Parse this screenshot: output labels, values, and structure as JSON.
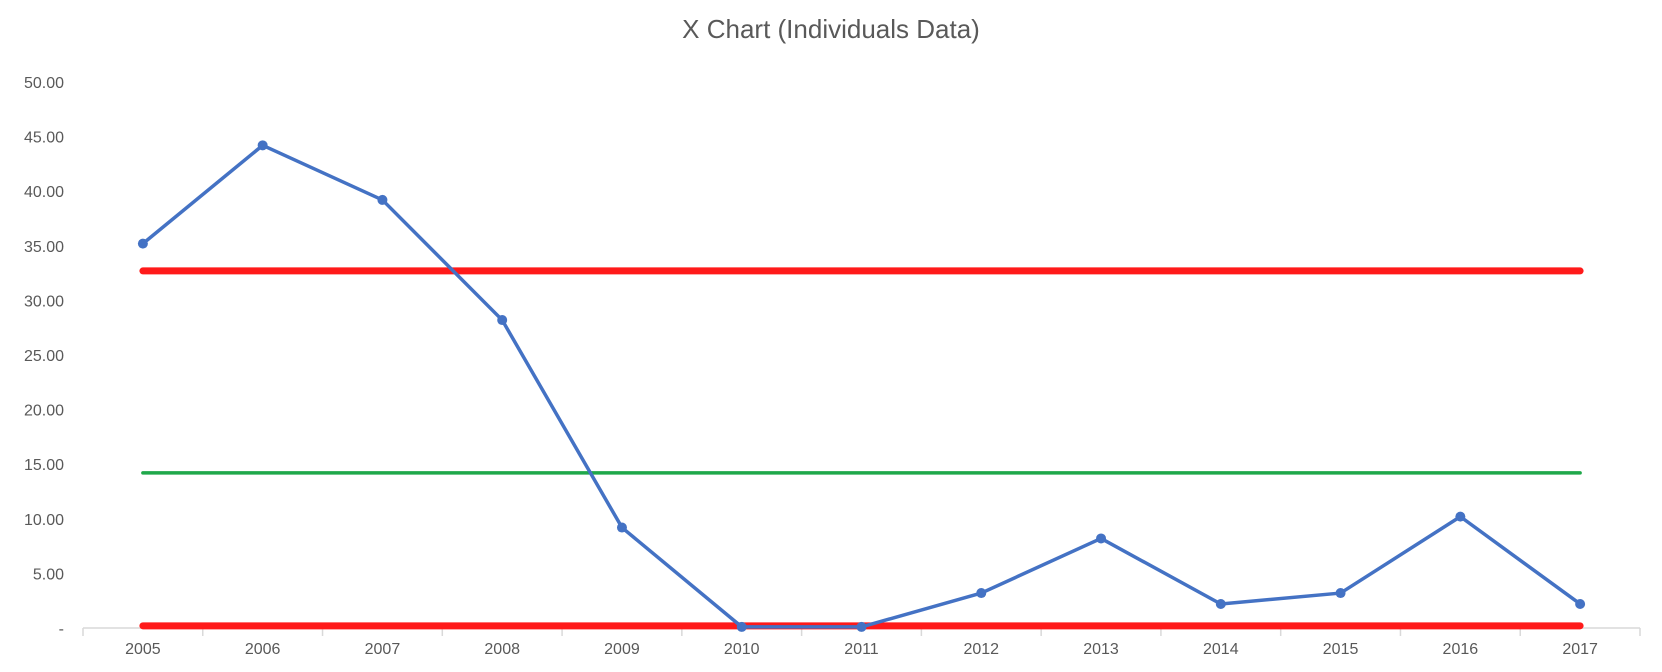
{
  "chart_data": {
    "type": "line",
    "title": "X Chart (Individuals Data)",
    "xlabel": "",
    "ylabel": "",
    "categories": [
      "2005",
      "2006",
      "2007",
      "2008",
      "2009",
      "2010",
      "2011",
      "2012",
      "2013",
      "2014",
      "2015",
      "2016",
      "2017"
    ],
    "y_tick_labels": [
      "-",
      "5.00",
      "10.00",
      "15.00",
      "20.00",
      "25.00",
      "30.00",
      "35.00",
      "40.00",
      "45.00",
      "50.00"
    ],
    "y_tick_values": [
      0,
      5,
      10,
      15,
      20,
      25,
      30,
      35,
      40,
      45,
      50
    ],
    "ylim": [
      0,
      50
    ],
    "grid": false,
    "legend": "none",
    "series": [
      {
        "values": [
          35.2,
          44.2,
          39.2,
          28.2,
          9.2,
          0.1,
          0.1,
          3.2,
          8.2,
          2.2,
          3.2,
          10.2,
          2.2
        ],
        "color": "#4472C4",
        "markers": true
      }
    ],
    "reference_lines": [
      {
        "value": 32.7,
        "color": "#FF1A1A",
        "style": "thick"
      },
      {
        "value": 14.2,
        "color": "#1FA84A",
        "style": "thin"
      },
      {
        "value": 0.2,
        "color": "#FF1A1A",
        "style": "thick"
      }
    ]
  }
}
